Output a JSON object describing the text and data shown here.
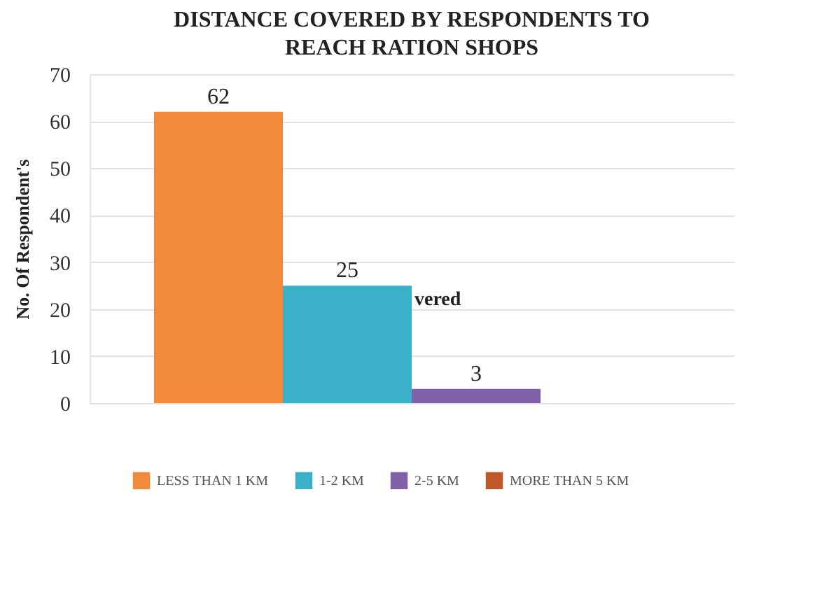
{
  "chart_data": {
    "type": "bar",
    "title": "DISTANCE COVERED BY RESPONDENTS TO REACH RATION SHOPS",
    "ylabel": "No. Of Respondent's",
    "categories": [
      null
    ],
    "series": [
      {
        "name": "LESS THAN 1 KM",
        "color": "#f28a3c",
        "values": [
          62
        ]
      },
      {
        "name": "1-2 KM",
        "color": "#3bb0c9",
        "values": [
          25
        ]
      },
      {
        "name": "2-5 KM",
        "color": "#8060a8",
        "values": [
          3
        ]
      },
      {
        "name": "MORE THAN 5 KM",
        "color": "#c0582a",
        "values": [
          null
        ]
      }
    ],
    "ylim": [
      0,
      70
    ],
    "yticks": [
      0,
      10,
      20,
      30,
      40,
      50,
      60,
      70
    ],
    "grid": "y",
    "legend": "bottom",
    "data_labels": true,
    "annotations": [
      "vered"
    ]
  }
}
